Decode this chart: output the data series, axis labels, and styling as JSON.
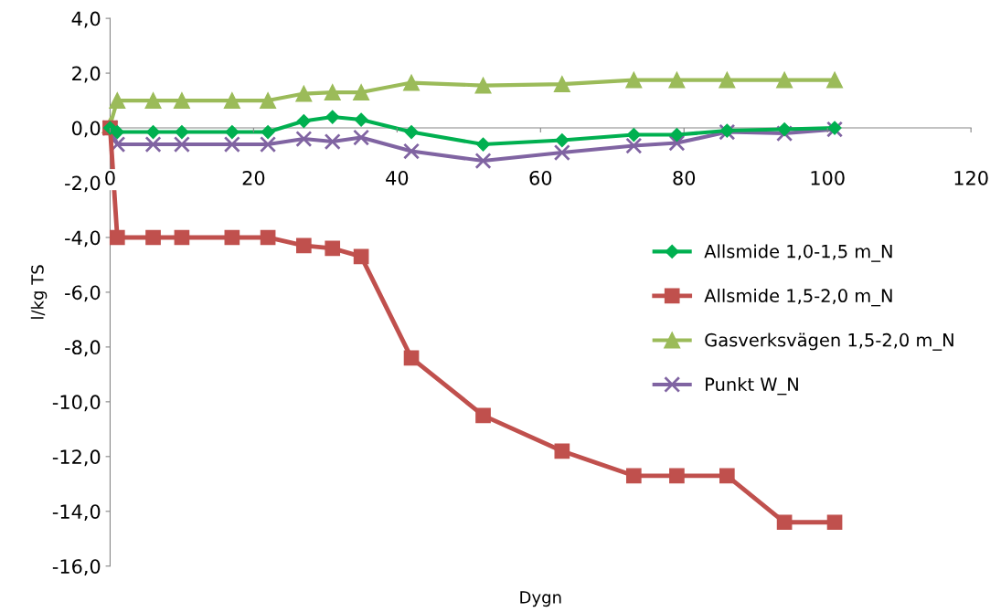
{
  "chart_data": {
    "type": "line",
    "xlabel": "Dygn",
    "ylabel": "l/kg TS",
    "x": [
      0,
      1,
      6,
      10,
      17,
      22,
      27,
      31,
      35,
      42,
      52,
      63,
      73,
      79,
      86,
      94,
      101
    ],
    "series": [
      {
        "name": "Allsmide 1,0-1,5 m_N",
        "color": "#00b050",
        "marker": "diamond",
        "values": [
          0,
          -0.15,
          -0.15,
          -0.15,
          -0.15,
          -0.15,
          0.25,
          0.4,
          0.3,
          -0.15,
          -0.6,
          -0.45,
          -0.25,
          -0.25,
          -0.1,
          -0.05,
          0
        ]
      },
      {
        "name": "Allsmide 1,5-2,0 m_N",
        "color": "#c0504d",
        "marker": "square",
        "values": [
          0,
          -4,
          -4,
          -4,
          -4,
          -4,
          -4.3,
          -4.4,
          -4.7,
          -8.4,
          -10.5,
          -11.8,
          -12.7,
          -12.7,
          -12.7,
          -14.4,
          -14.4
        ]
      },
      {
        "name": "Gasverksvägen 1,5-2,0 m_N",
        "color": "#9bbb59",
        "marker": "triangle",
        "values": [
          0.1,
          1.0,
          1.0,
          1.0,
          1.0,
          1.0,
          1.25,
          1.3,
          1.3,
          1.65,
          1.55,
          1.6,
          1.75,
          1.75,
          1.75,
          1.75,
          1.75
        ]
      },
      {
        "name": "Punkt W_N",
        "color": "#8064a2",
        "marker": "cross",
        "values": [
          0,
          -0.6,
          -0.6,
          -0.6,
          -0.6,
          -0.6,
          -0.4,
          -0.5,
          -0.35,
          -0.85,
          -1.2,
          -0.9,
          -0.65,
          -0.55,
          -0.15,
          -0.2,
          -0.05
        ]
      }
    ],
    "xlim": [
      0,
      120
    ],
    "xticks": [
      0,
      20,
      40,
      60,
      80,
      100,
      120
    ],
    "ylim": [
      -16,
      4
    ],
    "yticks": [
      {
        "value": -16,
        "label": "-16,0"
      },
      {
        "value": -14,
        "label": "-14,0"
      },
      {
        "value": -12,
        "label": "-12,0"
      },
      {
        "value": -10,
        "label": "-10,0"
      },
      {
        "value": -8,
        "label": "-8,0"
      },
      {
        "value": -6,
        "label": "-6,0"
      },
      {
        "value": -4,
        "label": "-4,0"
      },
      {
        "value": -2,
        "label": "-2,0"
      },
      {
        "value": 0,
        "label": "0,0"
      },
      {
        "value": 2,
        "label": "2,0"
      },
      {
        "value": 4,
        "label": "4,0"
      }
    ],
    "grid": false,
    "legend": "right",
    "line_style": "solid"
  }
}
